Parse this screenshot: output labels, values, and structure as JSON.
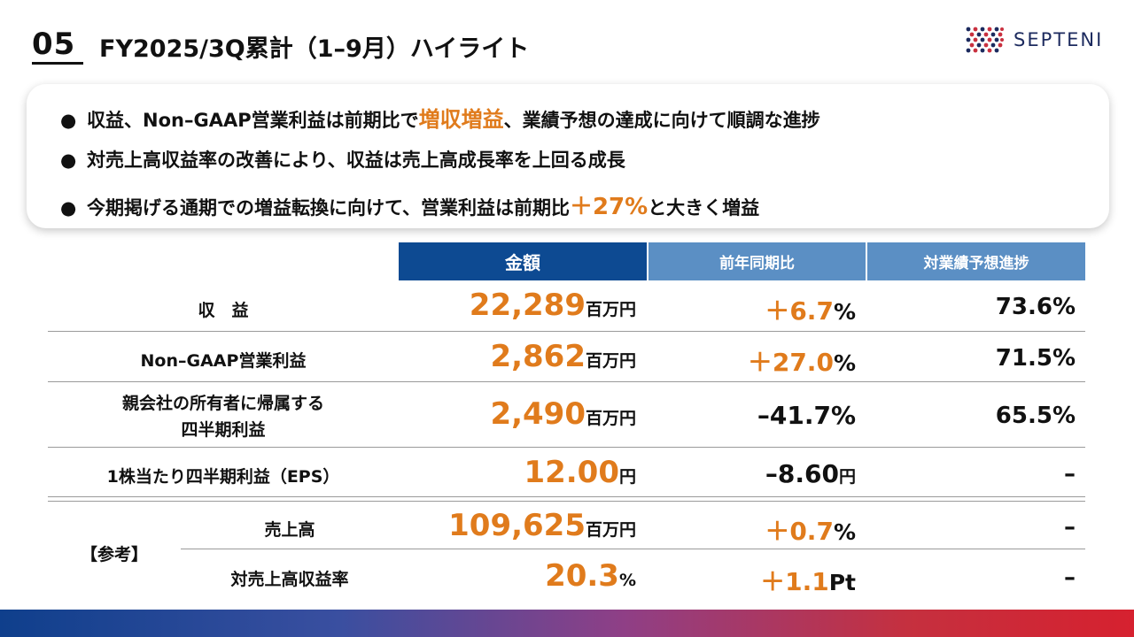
{
  "header": {
    "section_number": "05",
    "title": "FY2025/3Q累計（1–9月）ハイライト",
    "logo_text": "SEPTENI"
  },
  "highlights": {
    "item1": {
      "pre": "収益、Non–GAAP営業利益は前期比で",
      "accent": "増収増益",
      "post": "、業績予想の達成に向けて順調な進捗"
    },
    "item2": {
      "text": "対売上高収益率の改善により、収益は売上高成長率を上回る成長"
    },
    "item3": {
      "pre": "今期掲げる通期での増益転換に向けて、営業利益は前期比",
      "accent": "＋27%",
      "post": "と大きく増益"
    }
  },
  "table": {
    "headers": {
      "amount": "金額",
      "yoy": "前年同期比",
      "progress": "対業績予想進捗"
    },
    "rows": [
      {
        "label": "収　益",
        "amount": "22,289",
        "unit": "百万円",
        "yoy_value": "＋6.7",
        "yoy_unit": "%",
        "progress": "73.6%"
      },
      {
        "label": "Non–GAAP営業利益",
        "amount": "2,862",
        "unit": "百万円",
        "yoy_value": "＋27.0",
        "yoy_unit": "%",
        "progress": "71.5%"
      },
      {
        "label_line1": "親会社の所有者に帰属する",
        "label_line2": "四半期利益",
        "amount": "2,490",
        "unit": "百万円",
        "yoy": "–41.7%",
        "progress": "65.5%"
      },
      {
        "label": "1株当たり四半期利益（EPS）",
        "amount": "12.00",
        "unit": "円",
        "yoy_value": "–8.60",
        "yoy_unit": "円",
        "progress": "–"
      }
    ],
    "reference": {
      "group_label": "【参考】",
      "rows": [
        {
          "label": "売上高",
          "amount": "109,625",
          "unit": "百万円",
          "yoy_value": "＋0.7",
          "yoy_unit": "%",
          "progress": "–"
        },
        {
          "label": "対売上高収益率",
          "amount": "20.3",
          "unit": "%",
          "yoy_value": "＋1.1",
          "yoy_unit": "Pt",
          "progress": "–"
        }
      ]
    }
  },
  "colors": {
    "accent_orange": "#e07b1c",
    "header_dark_blue": "#0d4a92",
    "header_light_blue": "#5b8fc4"
  }
}
